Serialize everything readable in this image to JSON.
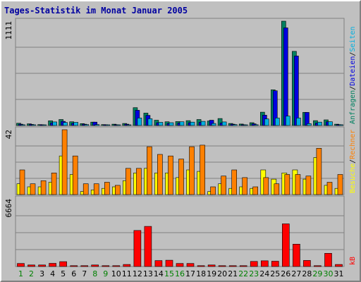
{
  "chart_data": {
    "type": "bar",
    "title": "Tages-Statistik im Monat Januar 2005",
    "categories": [
      "1",
      "2",
      "3",
      "4",
      "5",
      "6",
      "7",
      "8",
      "9",
      "10",
      "11",
      "12",
      "13",
      "14",
      "15",
      "16",
      "17",
      "18",
      "19",
      "20",
      "21",
      "22",
      "23",
      "24",
      "25",
      "26",
      "27",
      "28",
      "29",
      "30",
      "31"
    ],
    "weekend_days": [
      "1",
      "2",
      "8",
      "9",
      "15",
      "16",
      "22",
      "23",
      "29",
      "30"
    ],
    "panels": [
      {
        "id": "anfragen",
        "ymax_label": "1111",
        "ylim": [
          0,
          1111
        ],
        "series": [
          {
            "name": "Anfragen",
            "color": "#008060",
            "values": [
              24,
              18,
              10,
              50,
              64,
              40,
              20,
              36,
              10,
              14,
              22,
              190,
              132,
              56,
              40,
              42,
              52,
              64,
              48,
              74,
              22,
              16,
              30,
              142,
              380,
              1111,
              790,
              140,
              52,
              60,
              14
            ]
          },
          {
            "name": "Dateien",
            "color": "#0000e0",
            "values": [
              14,
              12,
              8,
              28,
              44,
              24,
              14,
              36,
              8,
              8,
              14,
              162,
              108,
              30,
              22,
              26,
              30,
              34,
              56,
              26,
              14,
              8,
              18,
              110,
              370,
              1040,
              740,
              140,
              26,
              40,
              10
            ]
          },
          {
            "name": "Seiten",
            "color": "#00b0e0",
            "values": [
              8,
              8,
              4,
              38,
              32,
              34,
              10,
              10,
              4,
              4,
              6,
              80,
              72,
              34,
              30,
              40,
              36,
              44,
              22,
              38,
              10,
              4,
              8,
              70,
              80,
              100,
              80,
              20,
              36,
              40,
              8
            ]
          }
        ]
      },
      {
        "id": "besuche",
        "ymax_label": "42",
        "ylim": [
          0,
          42
        ],
        "series": [
          {
            "name": "Besuche",
            "color": "#ffff00",
            "values": [
              7,
              5,
              5,
              8,
              25,
              13,
              2,
              3,
              4,
              5,
              9,
              14,
              17,
              14,
              14,
              11,
              16,
              15,
              2,
              7,
              4,
              5,
              4,
              16,
              10,
              14,
              16,
              10,
              24,
              6,
              4
            ]
          },
          {
            "name": "Rechner",
            "color": "#ff8000",
            "values": [
              16,
              7,
              9,
              14,
              42,
              25,
              7,
              7,
              8,
              6,
              17,
              17,
              31,
              26,
              25,
              23,
              31,
              32,
              5,
              12,
              16,
              11,
              5,
              11,
              7,
              13,
              13,
              12,
              30,
              8,
              13
            ]
          }
        ]
      },
      {
        "id": "kb",
        "ymax_label": "6664",
        "ylim": [
          0,
          6664
        ],
        "series": [
          {
            "name": "kB",
            "color": "#ff0000",
            "values": [
              300,
              150,
              150,
              310,
              480,
              80,
              80,
              150,
              80,
              80,
              200,
              3550,
              3950,
              580,
              620,
              300,
              300,
              80,
              150,
              80,
              80,
              80,
              500,
              560,
              520,
              4200,
              2200,
              600,
              80,
              1300,
              200
            ]
          }
        ]
      }
    ],
    "legend_right": {
      "top": [
        "Anfragen",
        "Dateien",
        "Seiten"
      ],
      "middle": [
        "Besuche",
        "Rechner"
      ],
      "bottom": [
        "kB"
      ],
      "separator": "/"
    },
    "colors": {
      "title": "#0000a0",
      "background": "#c0c0c0",
      "grid": "#808080",
      "axis_label_weekday": "#000000",
      "axis_label_weekend": "#008000"
    }
  }
}
